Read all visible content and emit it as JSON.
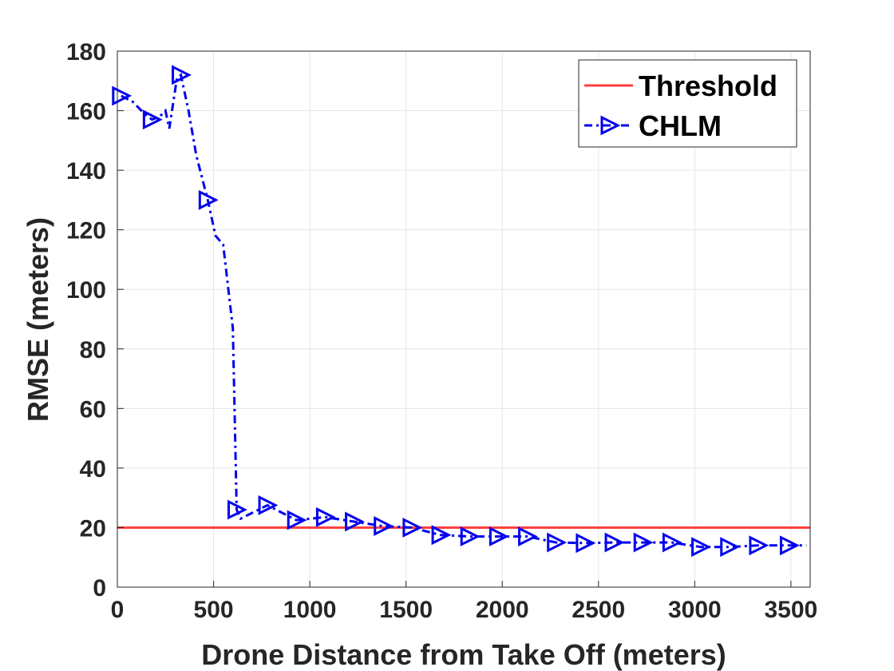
{
  "chart_data": {
    "type": "line",
    "title": "",
    "xlabel": "Drone Distance from Take Off (meters)",
    "ylabel": "RMSE (meters)",
    "xlim": [
      0,
      3600
    ],
    "ylim": [
      0,
      180
    ],
    "xticks": [
      0,
      500,
      1000,
      1500,
      2000,
      2500,
      3000,
      3500
    ],
    "yticks": [
      0,
      20,
      40,
      60,
      80,
      100,
      120,
      140,
      160,
      180
    ],
    "grid": true,
    "legend_position": "top-right",
    "series": [
      {
        "name": "Threshold",
        "color": "#ff4040",
        "style": "solid",
        "x": [
          0,
          3600
        ],
        "y": [
          20,
          20
        ]
      },
      {
        "name": "CHLM",
        "color": "#0000ee",
        "style": "dash-dot",
        "marker": "triangle-right",
        "x": [
          20,
          80,
          140,
          180,
          220,
          250,
          270,
          310,
          330,
          370,
          410,
          470,
          510,
          550,
          600,
          620,
          640,
          780,
          930,
          1080,
          1230,
          1380,
          1530,
          1680,
          1830,
          1980,
          2130,
          2280,
          2430,
          2580,
          2730,
          2880,
          3030,
          3180,
          3330,
          3490,
          3580
        ],
        "y": [
          165,
          163,
          159,
          157,
          158,
          160,
          154,
          171,
          172,
          160,
          145,
          130,
          118,
          115,
          87,
          26,
          23,
          27.5,
          22.5,
          23.5,
          22,
          20.5,
          20,
          17.5,
          17,
          17,
          17,
          15,
          14.8,
          15,
          15,
          15,
          13.5,
          13.5,
          14,
          14,
          14
        ],
        "markers_at": [
          20,
          180,
          330,
          470,
          620,
          780,
          930,
          1080,
          1230,
          1380,
          1530,
          1680,
          1830,
          1980,
          2130,
          2280,
          2430,
          2580,
          2730,
          2880,
          3030,
          3180,
          3330,
          3490
        ]
      }
    ]
  }
}
